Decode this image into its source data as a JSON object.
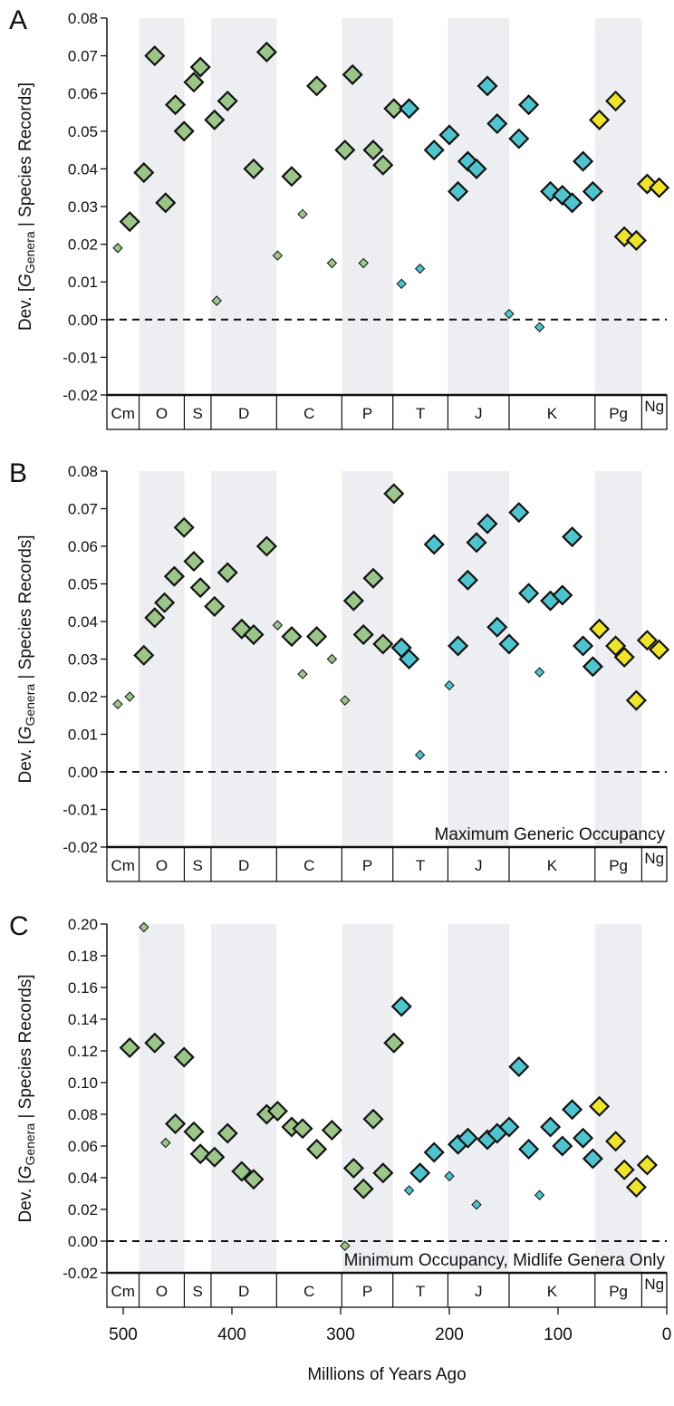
{
  "chart_data": [
    {
      "type": "scatter",
      "panel": "A",
      "ylabel": {
        "prefix": "Dev. [",
        "symbol": "G",
        "subscript": "Genera",
        "suffix": " | Species Records]"
      },
      "xlim": [
        515,
        0
      ],
      "ylim": [
        -0.02,
        0.08
      ],
      "yticks": [
        -0.02,
        -0.01,
        {
          "value": 0,
          "label": "0.00"
        },
        0.01,
        0.02,
        0.03,
        0.04,
        0.05,
        0.06,
        0.07,
        0.08
      ],
      "zero_line": true,
      "periods": {
        "names": [
          "Cm",
          "O",
          "S",
          "D",
          "C",
          "P",
          "T",
          "J",
          "K",
          "Pg",
          "Ng"
        ],
        "boundaries": [
          485.4,
          443.8,
          419.2,
          358.9,
          298.9,
          251.9,
          201.3,
          145,
          66,
          23
        ],
        "shaded": [
          1,
          3,
          5,
          7,
          9
        ]
      },
      "series": [
        {
          "color": "#9cc58a",
          "marker": "large",
          "x": [
            494,
            481,
            471,
            461,
            452,
            444,
            435,
            429,
            416,
            404,
            380,
            368,
            345,
            322,
            296,
            289,
            270,
            261,
            251
          ],
          "values": [
            0.026,
            0.039,
            0.07,
            0.031,
            0.057,
            0.05,
            0.063,
            0.067,
            0.053,
            0.058,
            0.04,
            0.071,
            0.038,
            0.062,
            0.045,
            0.065,
            0.045,
            0.041,
            0.056
          ]
        },
        {
          "color": "#9cc58a",
          "marker": "small",
          "x": [
            505,
            414,
            358,
            335,
            308,
            279
          ],
          "values": [
            0.019,
            0.005,
            0.017,
            0.028,
            0.015,
            0.015
          ]
        },
        {
          "color": "#4fc4cf",
          "marker": "large",
          "x": [
            237,
            214,
            200,
            192,
            183,
            175,
            165,
            156,
            136,
            127,
            107,
            96,
            87,
            77,
            68
          ],
          "values": [
            0.056,
            0.045,
            0.049,
            0.034,
            0.042,
            0.04,
            0.062,
            0.052,
            0.048,
            0.057,
            0.034,
            0.033,
            0.031,
            0.042,
            0.034
          ]
        },
        {
          "color": "#4fc4cf",
          "marker": "small",
          "x": [
            244,
            227,
            145,
            117
          ],
          "values": [
            0.0095,
            0.0135,
            0.0015,
            -0.002
          ]
        },
        {
          "color": "#efe42c",
          "marker": "large",
          "x": [
            62,
            47,
            39,
            28,
            18,
            7
          ],
          "values": [
            0.053,
            0.058,
            0.022,
            0.021,
            0.036,
            0.035
          ]
        }
      ]
    },
    {
      "type": "scatter",
      "panel": "B",
      "ylabel": {
        "prefix": "Dev. [",
        "symbol": "G",
        "subscript": "Genera",
        "suffix": " | Species Records]"
      },
      "annotation": "Maximum Generic Occupancy",
      "xlim": [
        515,
        0
      ],
      "ylim": [
        -0.02,
        0.08
      ],
      "yticks": [
        -0.02,
        -0.01,
        {
          "value": 0,
          "label": "0.00"
        },
        0.01,
        0.02,
        0.03,
        0.04,
        0.05,
        0.06,
        0.07,
        0.08
      ],
      "zero_line": true,
      "periods": {
        "names": [
          "Cm",
          "O",
          "S",
          "D",
          "C",
          "P",
          "T",
          "J",
          "K",
          "Pg",
          "Ng"
        ],
        "boundaries": [
          485.4,
          443.8,
          419.2,
          358.9,
          298.9,
          251.9,
          201.3,
          145,
          66,
          23
        ],
        "shaded": [
          1,
          3,
          5,
          7,
          9
        ]
      },
      "series": [
        {
          "color": "#9cc58a",
          "marker": "large",
          "x": [
            481,
            471,
            462,
            453,
            444,
            435,
            429,
            416,
            404,
            391,
            380,
            368,
            345,
            322,
            288,
            279,
            270,
            261,
            251
          ],
          "values": [
            0.031,
            0.041,
            0.045,
            0.052,
            0.065,
            0.056,
            0.049,
            0.044,
            0.053,
            0.038,
            0.0365,
            0.06,
            0.036,
            0.036,
            0.0455,
            0.0365,
            0.0515,
            0.034,
            0.074
          ]
        },
        {
          "color": "#9cc58a",
          "marker": "small",
          "x": [
            505,
            494,
            358,
            335,
            308,
            296
          ],
          "values": [
            0.018,
            0.02,
            0.039,
            0.026,
            0.03,
            0.019
          ]
        },
        {
          "color": "#4fc4cf",
          "marker": "large",
          "x": [
            244,
            237,
            214,
            192,
            183,
            175,
            165,
            156,
            145,
            136,
            127,
            107,
            96,
            87,
            77,
            68
          ],
          "values": [
            0.033,
            0.03,
            0.0605,
            0.0335,
            0.051,
            0.061,
            0.066,
            0.0385,
            0.034,
            0.069,
            0.0475,
            0.0455,
            0.047,
            0.0625,
            0.0335,
            0.028
          ]
        },
        {
          "color": "#4fc4cf",
          "marker": "small",
          "x": [
            227,
            200,
            117
          ],
          "values": [
            0.0045,
            0.023,
            0.0265
          ]
        },
        {
          "color": "#efe42c",
          "marker": "large",
          "x": [
            62,
            47,
            39,
            28,
            18,
            7
          ],
          "values": [
            0.038,
            0.0335,
            0.0305,
            0.019,
            0.035,
            0.0325
          ]
        }
      ]
    },
    {
      "type": "scatter",
      "panel": "C",
      "ylabel": {
        "prefix": "Dev. [",
        "symbol": "G",
        "subscript": "Genera",
        "suffix": " | Species Records]"
      },
      "annotation": "Minimum Occupancy, Midlife Genera Only",
      "xlabel": "Millions of Years Ago",
      "xlim": [
        515,
        0
      ],
      "ylim": [
        -0.02,
        0.2
      ],
      "xticks": [
        500,
        400,
        300,
        200,
        100,
        0
      ],
      "yticks": [
        -0.02,
        {
          "value": 0,
          "label": "0.00"
        },
        0.02,
        0.04,
        0.06,
        0.08,
        {
          "value": 0.1,
          "label": "0.10"
        },
        0.12,
        0.14,
        0.16,
        0.18,
        {
          "value": 0.2,
          "label": "0.20"
        }
      ],
      "zero_line": true,
      "periods": {
        "names": [
          "Cm",
          "O",
          "S",
          "D",
          "C",
          "P",
          "T",
          "J",
          "K",
          "Pg",
          "Ng"
        ],
        "boundaries": [
          485.4,
          443.8,
          419.2,
          358.9,
          298.9,
          251.9,
          201.3,
          145,
          66,
          23
        ],
        "shaded": [
          1,
          3,
          5,
          7,
          9
        ]
      },
      "series": [
        {
          "color": "#9cc58a",
          "marker": "large",
          "x": [
            494,
            471,
            452,
            444,
            435,
            429,
            416,
            404,
            391,
            380,
            368,
            358,
            345,
            335,
            322,
            308,
            288,
            279,
            270,
            261,
            251
          ],
          "values": [
            0.122,
            0.125,
            0.074,
            0.116,
            0.069,
            0.055,
            0.053,
            0.068,
            0.044,
            0.039,
            0.08,
            0.082,
            0.072,
            0.071,
            0.058,
            0.07,
            0.046,
            0.033,
            0.077,
            0.043,
            0.125
          ]
        },
        {
          "color": "#9cc58a",
          "marker": "small",
          "x": [
            481,
            461,
            296
          ],
          "values": [
            0.198,
            0.062,
            -0.003
          ]
        },
        {
          "color": "#4fc4cf",
          "marker": "large",
          "x": [
            244,
            227,
            214,
            192,
            183,
            165,
            156,
            145,
            136,
            127,
            107,
            96,
            87,
            77,
            68
          ],
          "values": [
            0.148,
            0.043,
            0.056,
            0.061,
            0.065,
            0.064,
            0.068,
            0.072,
            0.11,
            0.058,
            0.072,
            0.06,
            0.083,
            0.065,
            0.052
          ]
        },
        {
          "color": "#4fc4cf",
          "marker": "small",
          "x": [
            237,
            200,
            175,
            117
          ],
          "values": [
            0.032,
            0.041,
            0.023,
            0.029
          ]
        },
        {
          "color": "#efe42c",
          "marker": "large",
          "x": [
            62,
            47,
            39,
            28,
            18
          ],
          "values": [
            0.085,
            0.063,
            0.045,
            0.034,
            0.048
          ]
        }
      ]
    }
  ]
}
